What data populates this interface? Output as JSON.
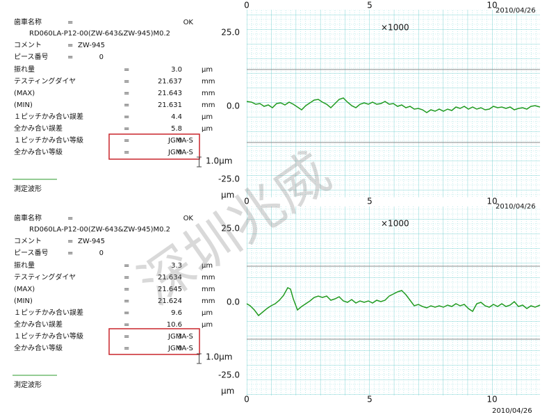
{
  "watermark": "深圳兆威",
  "panels": [
    {
      "rows": [
        {
          "label": "歯車名称",
          "eq": "=",
          "value": "OK"
        },
        {
          "label": "RD060LA-P12-00(ZW-643&ZW-945)M0.2"
        },
        {
          "label": "コメント",
          "eq": "=",
          "value": "ZW-945"
        },
        {
          "label": "ピース番号",
          "eq": "=",
          "value": "0"
        },
        {
          "label": "振れ量",
          "eq": "=",
          "value": "3.0",
          "unit": "μm"
        },
        {
          "label": "テスティングダイヤ",
          "eq": "=",
          "value": "21.637",
          "unit": "mm"
        },
        {
          "label": "(MAX)",
          "eq": "=",
          "value": "21.643",
          "unit": "mm"
        },
        {
          "label": "(MIN)",
          "eq": "=",
          "value": "21.631",
          "unit": "mm"
        },
        {
          "label": "１ピッチかみ合い誤差",
          "eq": "=",
          "value": "4.4",
          "unit": "μm"
        },
        {
          "label": "全かみ合い誤差",
          "eq": "=",
          "value": "5.8",
          "unit": "μm"
        },
        {
          "label": "１ピッチかみ合い等級",
          "eq": "=",
          "value": "0",
          "unit": "JGMA-S"
        },
        {
          "label": "全かみ合い等級",
          "eq": "=",
          "value": "0",
          "unit": "JGMA-S"
        }
      ],
      "caption": "測定波形",
      "x_labels": [
        "0",
        "5",
        "10"
      ],
      "date": "2010/04/26",
      "scale": "×1000",
      "y_labels": [
        "25.0",
        "0.0",
        "-25.0"
      ],
      "scale_bar": "1.0μm",
      "y_unit": "μm"
    },
    {
      "rows": [
        {
          "label": "歯車名称",
          "eq": "=",
          "value": "OK"
        },
        {
          "label": "RD060LA-P12-00(ZW-643&ZW-945)M0.2"
        },
        {
          "label": "コメント",
          "eq": "=",
          "value": "ZW-945"
        },
        {
          "label": "ピース番号",
          "eq": "=",
          "value": "0"
        },
        {
          "label": "振れ量",
          "eq": "=",
          "value": "3.3",
          "unit": "μm"
        },
        {
          "label": "テスティングダイヤ",
          "eq": "=",
          "value": "21.634",
          "unit": "mm"
        },
        {
          "label": "(MAX)",
          "eq": "=",
          "value": "21.645",
          "unit": "mm"
        },
        {
          "label": "(MIN)",
          "eq": "=",
          "value": "21.624",
          "unit": "mm"
        },
        {
          "label": "１ピッチかみ合い誤差",
          "eq": "=",
          "value": "9.6",
          "unit": "μm"
        },
        {
          "label": "全かみ合い誤差",
          "eq": "=",
          "value": "10.6",
          "unit": "μm"
        },
        {
          "label": "１ピッチかみ合い等級",
          "eq": "=",
          "value": "3",
          "unit": "JGMA-S"
        },
        {
          "label": "全かみ合い等級",
          "eq": "=",
          "value": "0",
          "unit": "JGMA-S"
        }
      ],
      "caption": "測定波形",
      "x_labels": [
        "0",
        "5",
        "10"
      ],
      "date": "2010/04/26",
      "scale": "×1000",
      "y_labels": [
        "25.0",
        "0.0",
        "-25.0"
      ],
      "scale_bar": "1.0μm",
      "y_unit": "μm"
    }
  ],
  "bottom_x_labels": [
    "0",
    "5",
    "10"
  ],
  "bottom_date": "2010/04/26"
}
